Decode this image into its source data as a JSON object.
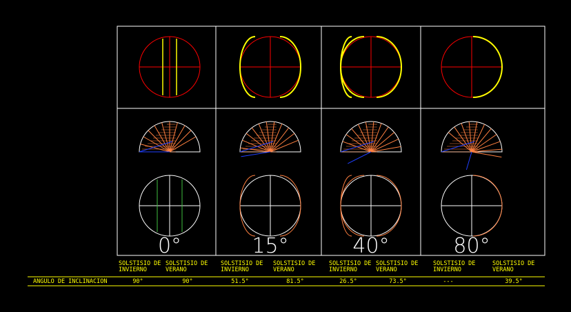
{
  "angles": [
    "0°",
    "15°",
    "40°",
    "80°"
  ],
  "table": {
    "headers": [
      [
        "SOLSTISIO DE",
        "INVIERNO"
      ],
      [
        "SOLSTISIO DE",
        "VERANO"
      ],
      [
        "SOLSTISIO DE",
        "INVIERNO"
      ],
      [
        "SOLSTISIO DE",
        "VERANO"
      ],
      [
        "SOLSTISIO DE",
        "INVIERNO"
      ],
      [
        "SOLSTISIO DE",
        "VERANO"
      ],
      [
        "SOLSTISIO DE",
        "INVIERNO"
      ],
      [
        "SOLSTISIO DE",
        "VERANO"
      ]
    ],
    "row_label": "ANGULO DE INCLINACION",
    "values": [
      "90°",
      "90°",
      "51.5°",
      "81.5°",
      "26.5°",
      "73.5°",
      "---",
      "39.5°"
    ]
  }
}
